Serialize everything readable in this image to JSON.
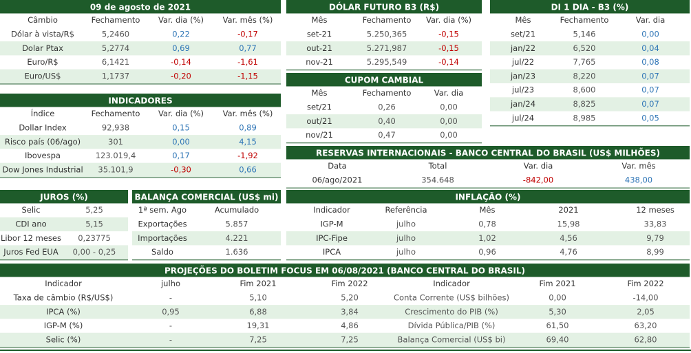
{
  "tables": [
    {
      "title": "09 de agosto de 2021",
      "headers": [
        "Câmbio",
        "Fechamento",
        "Var. dia (%)",
        "Var. mês (%)"
      ],
      "rows": [
        [
          "Dólar à vista/R$",
          "5,2460",
          "0,22",
          "-0,17"
        ],
        [
          "Dolar Ptax",
          "5,2774",
          "0,69",
          "0,77"
        ],
        [
          "Euro/R$",
          "6,1421",
          "-0,14",
          "-1,61"
        ],
        [
          "Euro/US$",
          "1,1737",
          "-0,20",
          "-1,15"
        ]
      ]
    },
    {
      "title": "DÓLAR FUTURO B3 (R$)",
      "headers": [
        "Mês",
        "Fechamento",
        "Var. dia (%)"
      ],
      "rows": [
        [
          "set-21",
          "5.250,365",
          "-0,15"
        ],
        [
          "out-21",
          "5.271,987",
          "-0,15"
        ],
        [
          "nov-21",
          "5.295,549",
          "-0,14"
        ]
      ]
    },
    {
      "title": "CUPOM CAMBIAL",
      "headers": [
        "Mês",
        "Fechamento",
        "Var. dia"
      ],
      "rows": [
        [
          "set/21",
          "0,26",
          "0,00"
        ],
        [
          "out/21",
          "0,40",
          "0,00"
        ],
        [
          "nov/21",
          "0,47",
          "0,00"
        ]
      ]
    },
    {
      "title": "DI 1 DIA - B3 (%)",
      "headers": [
        "Mês",
        "Fechamento",
        "Var. dia"
      ],
      "rows": [
        [
          "set/21",
          "5,146",
          "0,00"
        ],
        [
          "jan/22",
          "6,520",
          "0,04"
        ],
        [
          "jul/22",
          "7,765",
          "0,08"
        ],
        [
          "jan/23",
          "8,220",
          "0,07"
        ],
        [
          "jul/23",
          "8,600",
          "0,07"
        ],
        [
          "jan/24",
          "8,825",
          "0,07"
        ],
        [
          "jul/24",
          "8,985",
          "0,05"
        ]
      ]
    },
    {
      "title": "INDICADORES",
      "headers": [
        "Índice",
        "Fechamento",
        "Var. dia (%)",
        "Var. mês (%)"
      ],
      "rows": [
        [
          "Dollar Index",
          "92,938",
          "0,15",
          "0,89"
        ],
        [
          "Risco país (06/ago)",
          "301",
          "0,00",
          "4,15"
        ],
        [
          "Ibovespa",
          "123.019,4",
          "0,17",
          "-1,92"
        ],
        [
          "Dow Jones Industrial",
          "35.101,9",
          "-0,30",
          "0,66"
        ]
      ]
    },
    {
      "title": "RESERVAS INTERNACIONAIS - BANCO CENTRAL DO BRASIL (US$ MILHÕES)",
      "headers": [
        "Data",
        "Total",
        "Var. dia",
        "Var. mês"
      ],
      "rows": [
        [
          "06/ago/2021",
          "354.648",
          "-842,00",
          "438,00"
        ]
      ]
    },
    {
      "title": "JUROS (%)",
      "rows": [
        [
          "Selic",
          "5,25"
        ],
        [
          "CDI ano",
          "5,15"
        ],
        [
          "Libor 12 meses",
          "0,23775"
        ],
        [
          "Juros Fed EUA",
          "0,00 - 0,25"
        ]
      ]
    },
    {
      "title": "BALANÇA COMERCIAL (US$ mi)",
      "headers": [
        "1ª sem. Ago",
        "Acumulado"
      ],
      "rows": [
        [
          "Exportações",
          "5.857"
        ],
        [
          "Importações",
          "4.221"
        ],
        [
          "Saldo",
          "1.636"
        ]
      ]
    },
    {
      "title": "INFLAÇÃO (%)",
      "headers": [
        "Indicador",
        "Referência",
        "Mês",
        "2021",
        "12 meses"
      ],
      "rows": [
        [
          "IGP-M",
          "julho",
          "0,78",
          "15,98",
          "33,83"
        ],
        [
          "IPC-Fipe",
          "julho",
          "1,02",
          "4,56",
          "9,79"
        ],
        [
          "IPCA",
          "julho",
          "0,96",
          "4,76",
          "8,99"
        ]
      ]
    },
    {
      "title": "PROJEÇÕES DO BOLETIM FOCUS EM 06/08/2021 (BANCO CENTRAL DO BRASIL)",
      "headers": [
        "Indicador",
        "julho",
        "Fim 2021",
        "Fim 2022",
        "Indicador",
        "Fim 2021",
        "Fim 2022"
      ],
      "rows": [
        [
          "Taxa de câmbio (R$/US$)",
          "-",
          "5,10",
          "5,20",
          "Conta Corrente (US$ bilhões)",
          "0,00",
          "-14,00"
        ],
        [
          "IPCA (%)",
          "0,95",
          "6,88",
          "3,84",
          "Crescimento do PIB (%)",
          "5,30",
          "2,05"
        ],
        [
          "IGP-M (%)",
          "-",
          "19,31",
          "4,86",
          "Dívida Pública/PIB (%)",
          "61,50",
          "63,20"
        ],
        [
          "Selic (%)",
          "-",
          "7,25",
          "7,25",
          "Balança Comercial (US$ bi)",
          "69,40",
          "62,80"
        ]
      ]
    }
  ]
}
